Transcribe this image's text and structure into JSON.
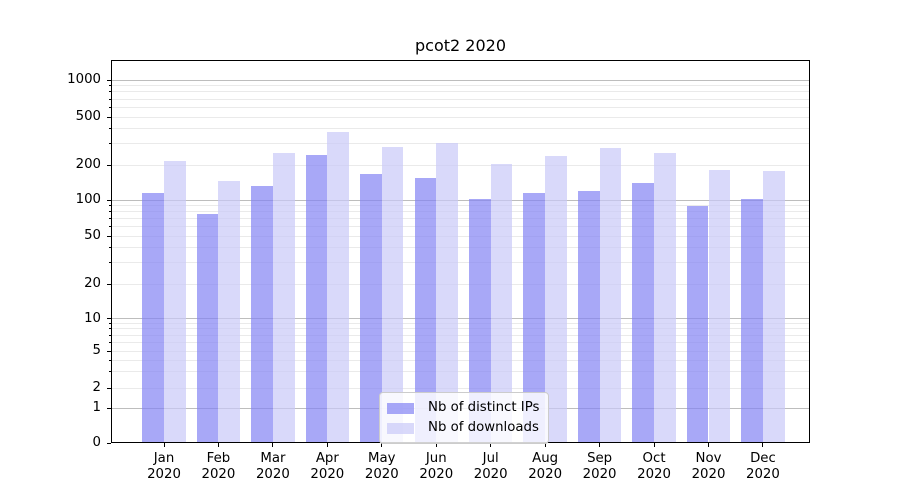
{
  "title": "pcot2 2020",
  "chart_data": {
    "type": "bar",
    "title": "pcot2 2020",
    "months": [
      "Jan",
      "Feb",
      "Mar",
      "Apr",
      "May",
      "Jun",
      "Jul",
      "Aug",
      "Sep",
      "Oct",
      "Nov",
      "Dec"
    ],
    "year": "2020",
    "series": [
      {
        "name": "Nb of distinct IPs",
        "key": "distinct-ips",
        "color": "#8383f4",
        "opacity": 0.7,
        "values": [
          115,
          77,
          131,
          240,
          168,
          154,
          103,
          116,
          119,
          141,
          89,
          103
        ]
      },
      {
        "name": "Nb of downloads",
        "key": "downloads",
        "color": "#c9c9f8",
        "opacity": 0.7,
        "values": [
          218,
          145,
          250,
          375,
          283,
          303,
          202,
          236,
          275,
          251,
          183,
          178
        ]
      }
    ],
    "y_axis": {
      "tick_values": [
        0,
        1,
        2,
        5,
        10,
        20,
        50,
        100,
        200,
        500,
        1000
      ],
      "tick_labels": [
        "0",
        "1",
        "2",
        "5",
        "10",
        "20",
        "50",
        "100",
        "200",
        "500",
        "1000"
      ],
      "scale": "log-like (compressed toward zero)",
      "ylim": [
        0,
        1450
      ],
      "grid": true,
      "major_grid_values": [
        1,
        10,
        100,
        1000
      ],
      "minor_grid_values": [
        2,
        3,
        4,
        5,
        6,
        7,
        8,
        9,
        20,
        30,
        40,
        50,
        60,
        70,
        80,
        90,
        200,
        300,
        400,
        500,
        600,
        700,
        800,
        900
      ]
    },
    "legend_position": "inside-bottom-center"
  }
}
